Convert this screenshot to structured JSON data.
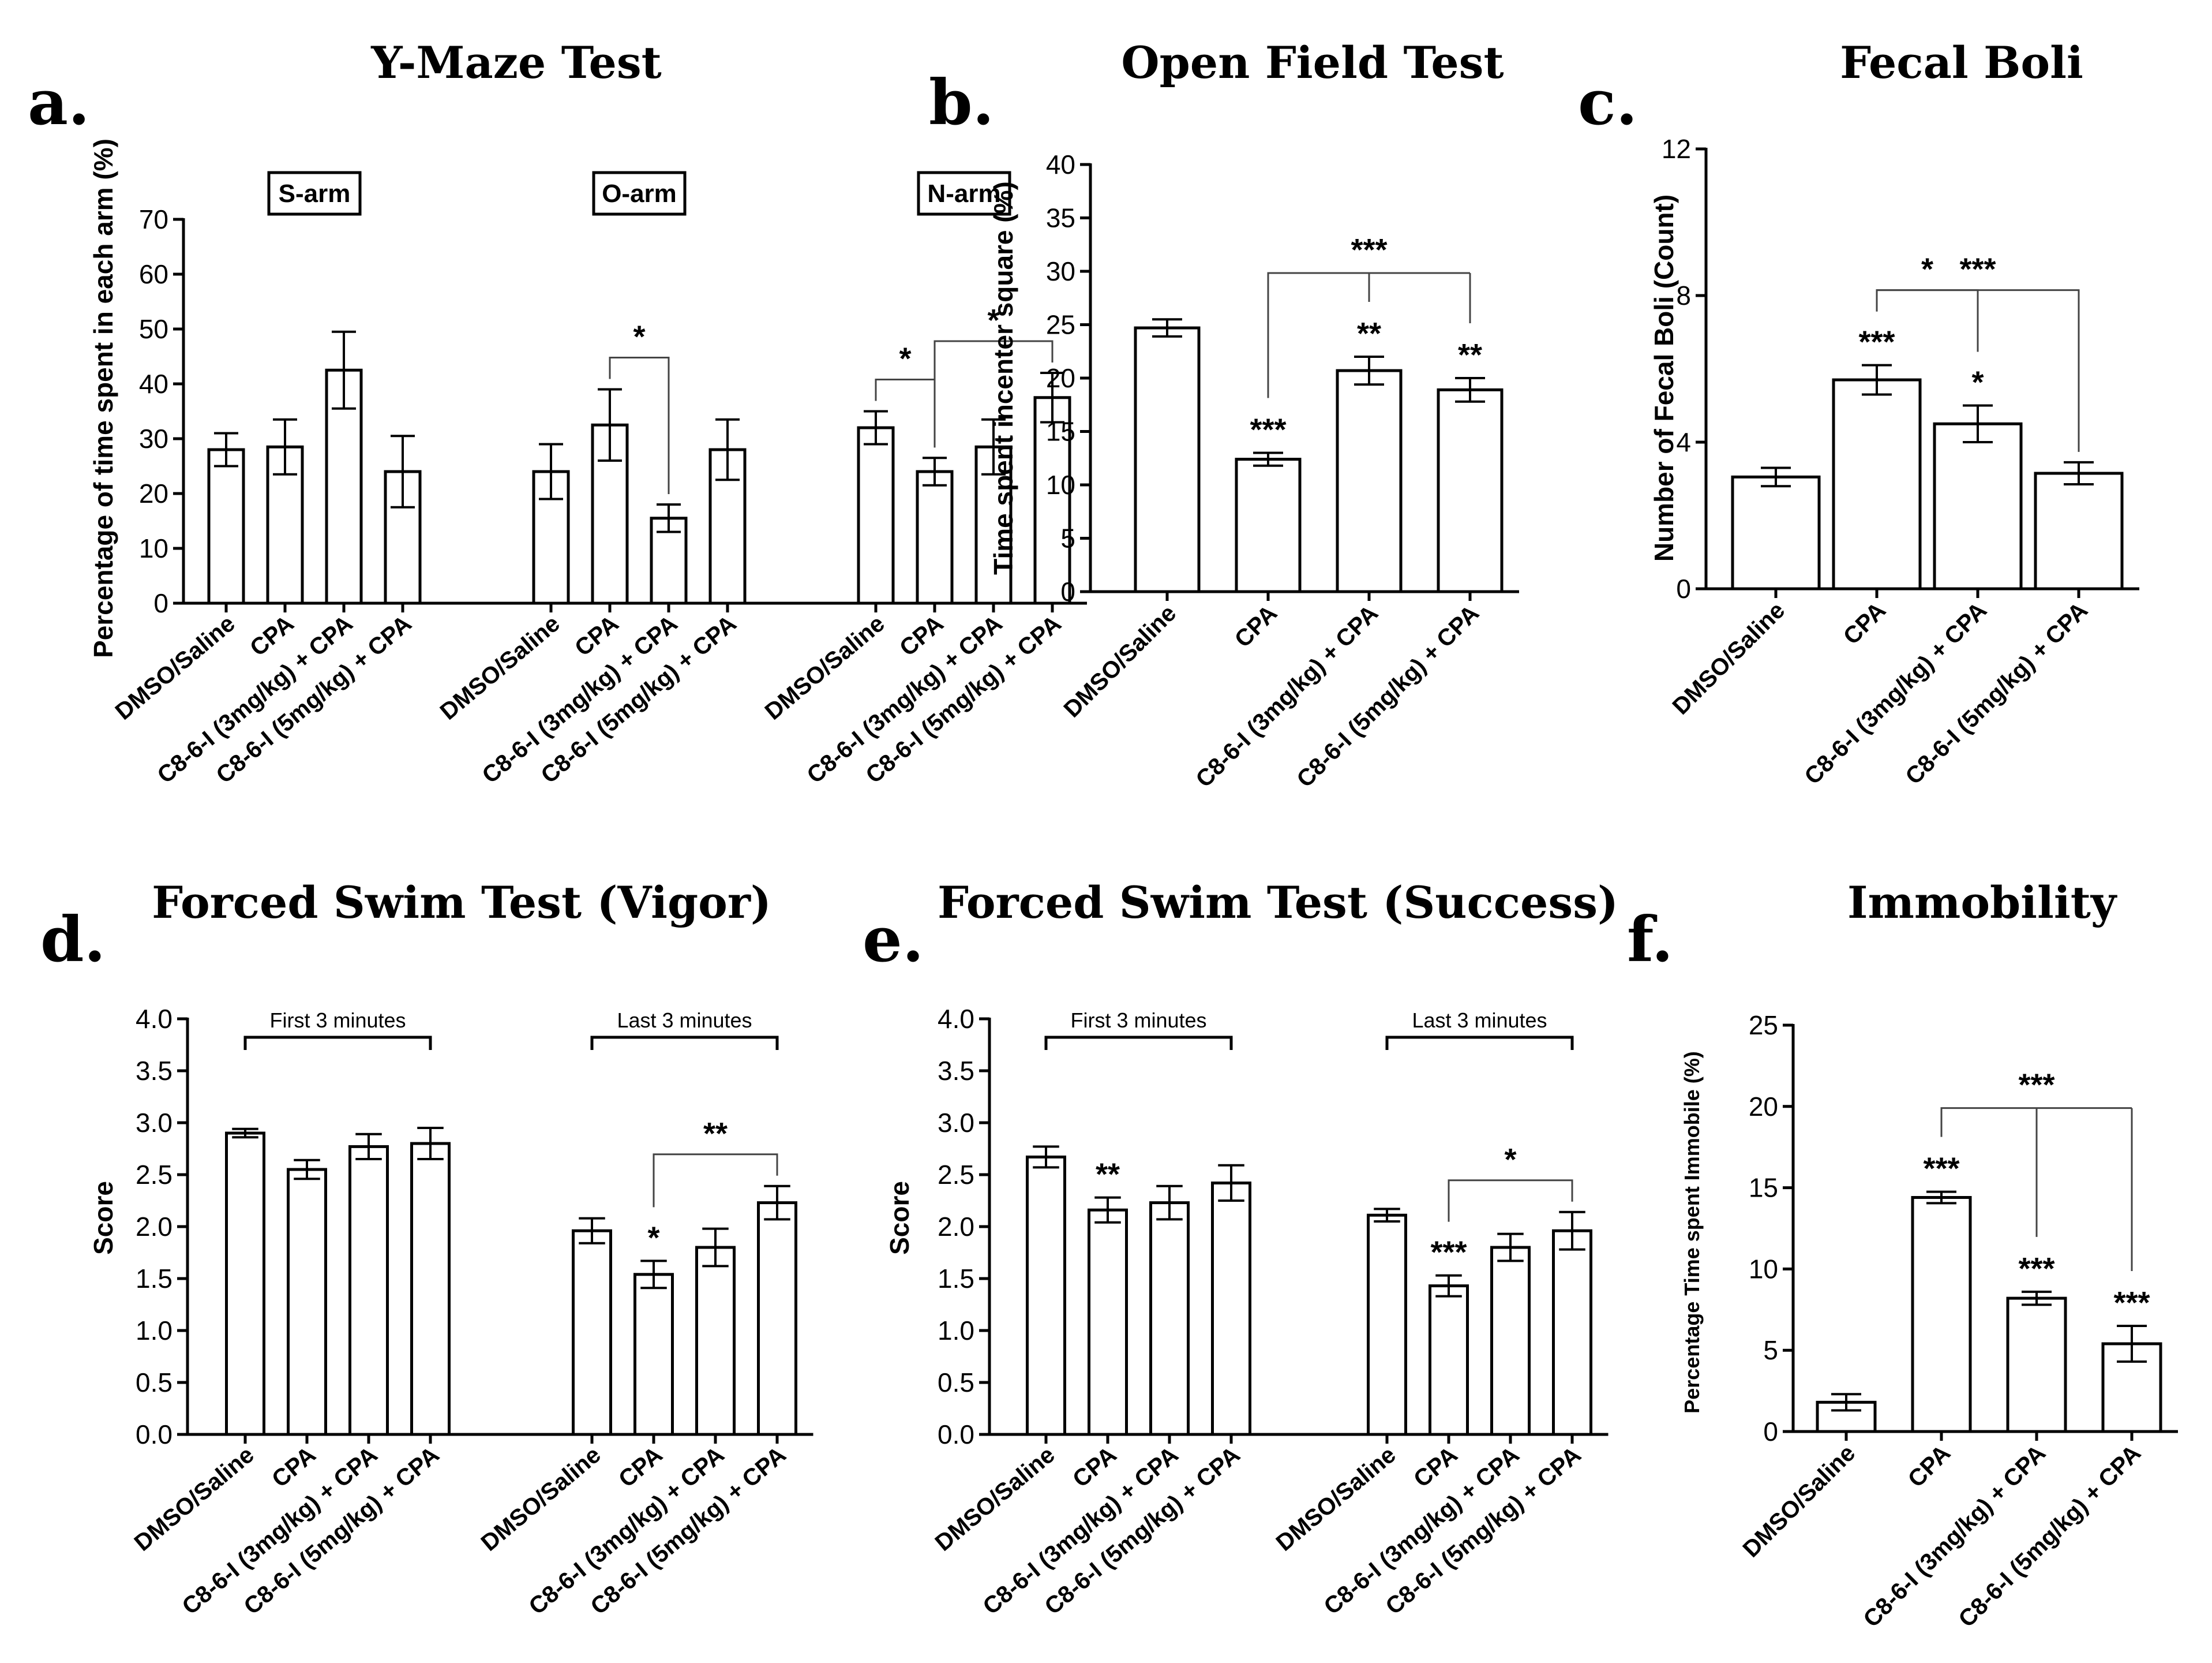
{
  "chart_data": [
    {
      "id": "a",
      "panel_label": "a.",
      "type": "bar",
      "title": "Y-Maze Test",
      "ylabel": "Percentage of time spent in each arm (%)",
      "ylim": [
        0,
        70
      ],
      "yticks": [
        0,
        10,
        20,
        30,
        40,
        50,
        60,
        70
      ],
      "ytick_labels": [
        "0",
        "10",
        "20",
        "30",
        "40",
        "50",
        "60",
        "70"
      ],
      "groups": [
        {
          "label": "S-arm",
          "boxed": true,
          "categories": [
            "DMSO/Saline",
            "CPA",
            "C8-6-I (3mg/kg) + CPA",
            "C8-6-I (5mg/kg) + CPA"
          ],
          "values": [
            28,
            28.5,
            42.5,
            24
          ],
          "errors": [
            3,
            5,
            7,
            6.5
          ],
          "marks": [
            "",
            "",
            "",
            ""
          ]
        },
        {
          "label": "O-arm",
          "boxed": true,
          "categories": [
            "DMSO/Saline",
            "CPA",
            "C8-6-I (3mg/kg) + CPA",
            "C8-6-I (5mg/kg) + CPA"
          ],
          "values": [
            24,
            32.5,
            15.5,
            28
          ],
          "errors": [
            5,
            6.5,
            2.5,
            5.5
          ],
          "marks": [
            "",
            "",
            "",
            ""
          ]
        },
        {
          "label": "N-arm",
          "boxed": true,
          "categories": [
            "DMSO/Saline",
            "CPA",
            "C8-6-I (3mg/kg) + CPA",
            "C8-6-I (5mg/kg) + CPA"
          ],
          "values": [
            32,
            24,
            28.5,
            37.5
          ],
          "errors": [
            3,
            2.5,
            5,
            4.5
          ],
          "marks": [
            "",
            "",
            "",
            ""
          ]
        }
      ],
      "comparisons": [
        {
          "from": [
            1,
            1
          ],
          "to": [
            1,
            2
          ],
          "label": "*"
        },
        {
          "from": [
            2,
            0
          ],
          "to": [
            2,
            1
          ],
          "label": "*"
        },
        {
          "from": [
            2,
            1
          ],
          "to": [
            2,
            3
          ],
          "label": "*"
        }
      ]
    },
    {
      "id": "b",
      "panel_label": "b.",
      "type": "bar",
      "title": "Open Field Test",
      "ylabel": "Time spent incenter square (%)",
      "ylim": [
        0,
        40
      ],
      "yticks": [
        0,
        5,
        10,
        15,
        20,
        25,
        30,
        35,
        40
      ],
      "ytick_labels": [
        "0",
        "5",
        "10",
        "15",
        "20",
        "25",
        "30",
        "35",
        "40"
      ],
      "groups": [
        {
          "label": "",
          "boxed": false,
          "categories": [
            "DMSO/Saline",
            "CPA",
            "C8-6-I (3mg/kg) + CPA",
            "C8-6-I (5mg/kg) + CPA"
          ],
          "values": [
            24.7,
            12.4,
            20.7,
            18.9
          ],
          "errors": [
            0.8,
            0.6,
            1.3,
            1.1
          ],
          "marks": [
            "",
            "***",
            "**",
            "**"
          ]
        }
      ],
      "multi_comparisons": [
        {
          "from": [
            0,
            1
          ],
          "to": [
            [
              0,
              2
            ],
            [
              0,
              3
            ]
          ],
          "label": "***"
        }
      ]
    },
    {
      "id": "c",
      "panel_label": "c.",
      "type": "bar",
      "title": "Fecal Boli",
      "ylabel": "Number of Fecal Boli (Count)",
      "ylim": [
        0,
        12
      ],
      "yticks": [
        0,
        4,
        8,
        12
      ],
      "ytick_labels": [
        "0",
        "4",
        "8",
        "12"
      ],
      "groups": [
        {
          "label": "",
          "boxed": false,
          "categories": [
            "DMSO/Saline",
            "CPA",
            "C8-6-I (3mg/kg) + CPA",
            "C8-6-I (5mg/kg) + CPA"
          ],
          "values": [
            3.05,
            5.7,
            4.5,
            3.15
          ],
          "errors": [
            0.25,
            0.4,
            0.5,
            0.3
          ],
          "marks": [
            "",
            "***",
            "*",
            ""
          ]
        }
      ],
      "comparisons": [
        {
          "from": [
            0,
            1
          ],
          "to": [
            0,
            2
          ],
          "label": "*"
        },
        {
          "from": [
            0,
            1
          ],
          "to": [
            0,
            3
          ],
          "label": "***"
        }
      ]
    },
    {
      "id": "d",
      "panel_label": "d.",
      "type": "bar",
      "title": "Forced Swim Test (Vigor)",
      "ylabel": "Score",
      "ylim": [
        0,
        4
      ],
      "yticks": [
        0,
        0.5,
        1,
        1.5,
        2,
        2.5,
        3,
        3.5,
        4
      ],
      "ytick_labels": [
        "0.0",
        "0.5",
        "1.0",
        "1.5",
        "2.0",
        "2.5",
        "3.0",
        "3.5",
        "4.0"
      ],
      "groups": [
        {
          "label": "First 3 minutes",
          "boxed": false,
          "categories": [
            "DMSO/Saline",
            "CPA",
            "C8-6-I (3mg/kg) + CPA",
            "C8-6-I (5mg/kg) + CPA"
          ],
          "values": [
            2.9,
            2.55,
            2.77,
            2.8
          ],
          "errors": [
            0.04,
            0.09,
            0.12,
            0.15
          ],
          "marks": [
            "",
            "",
            "",
            ""
          ]
        },
        {
          "label": "Last 3 minutes",
          "boxed": false,
          "categories": [
            "DMSO/Saline",
            "CPA",
            "C8-6-I (3mg/kg) + CPA",
            "C8-6-I (5mg/kg) + CPA"
          ],
          "values": [
            1.96,
            1.54,
            1.8,
            2.23
          ],
          "errors": [
            0.12,
            0.13,
            0.18,
            0.16
          ],
          "marks": [
            "",
            "*",
            "",
            ""
          ]
        }
      ],
      "comparisons": [
        {
          "from": [
            1,
            1
          ],
          "to": [
            1,
            3
          ],
          "label": "**"
        }
      ]
    },
    {
      "id": "e",
      "panel_label": "e.",
      "type": "bar",
      "title": "Forced Swim Test (Success)",
      "ylabel": "Score",
      "ylim": [
        0,
        4
      ],
      "yticks": [
        0,
        0.5,
        1,
        1.5,
        2,
        2.5,
        3,
        3.5,
        4
      ],
      "ytick_labels": [
        "0.0",
        "0.5",
        "1.0",
        "1.5",
        "2.0",
        "2.5",
        "3.0",
        "3.5",
        "4.0"
      ],
      "groups": [
        {
          "label": "First 3 minutes",
          "boxed": false,
          "categories": [
            "DMSO/Saline",
            "CPA",
            "C8-6-I (3mg/kg) + CPA",
            "C8-6-I (5mg/kg) + CPA"
          ],
          "values": [
            2.67,
            2.16,
            2.23,
            2.42
          ],
          "errors": [
            0.1,
            0.12,
            0.16,
            0.17
          ],
          "marks": [
            "",
            "**",
            "",
            ""
          ]
        },
        {
          "label": "Last 3 minutes",
          "boxed": false,
          "categories": [
            "DMSO/Saline",
            "CPA",
            "C8-6-I (3mg/kg) + CPA",
            "C8-6-I (5mg/kg) + CPA"
          ],
          "values": [
            2.11,
            1.43,
            1.8,
            1.96
          ],
          "errors": [
            0.06,
            0.1,
            0.13,
            0.18
          ],
          "marks": [
            "",
            "***",
            "",
            ""
          ]
        }
      ],
      "comparisons": [
        {
          "from": [
            1,
            1
          ],
          "to": [
            1,
            3
          ],
          "label": "*"
        }
      ]
    },
    {
      "id": "f",
      "panel_label": "f.",
      "type": "bar",
      "title": "Immobility",
      "ylabel": "Percentage Time spent Immobile (%)",
      "ylim": [
        0,
        25
      ],
      "yticks": [
        0,
        5,
        10,
        15,
        20,
        25
      ],
      "ytick_labels": [
        "0",
        "5",
        "10",
        "15",
        "20",
        "25"
      ],
      "groups": [
        {
          "label": "",
          "boxed": false,
          "categories": [
            "DMSO/Saline",
            "CPA",
            "C8-6-I (3mg/kg) + CPA",
            "C8-6-I (5mg/kg) + CPA"
          ],
          "values": [
            1.8,
            14.4,
            8.2,
            5.4
          ],
          "errors": [
            0.5,
            0.35,
            0.4,
            1.1
          ],
          "marks": [
            "",
            "***",
            "***",
            "***"
          ]
        }
      ],
      "multi_comparisons": [
        {
          "from": [
            0,
            1
          ],
          "to": [
            [
              0,
              2
            ],
            [
              0,
              3
            ]
          ],
          "label": "***"
        }
      ]
    }
  ]
}
